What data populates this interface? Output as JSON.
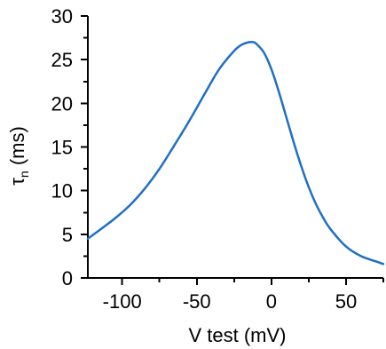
{
  "chart_data": {
    "type": "line",
    "title": "",
    "xlabel": "V test (mV)",
    "ylabel": {
      "main": "τ",
      "sub": "n",
      "suffix": " (ms)"
    },
    "xlim": [
      -123,
      75
    ],
    "ylim": [
      0,
      30
    ],
    "x_ticks": [
      {
        "value": -100,
        "label": "-100"
      },
      {
        "value": -50,
        "label": "-50"
      },
      {
        "value": 0,
        "label": "0"
      },
      {
        "value": 50,
        "label": "50"
      }
    ],
    "x_minor_ticks": [
      -125,
      -75,
      -25,
      25,
      75
    ],
    "y_ticks": [
      {
        "value": 0,
        "label": "0"
      },
      {
        "value": 5,
        "label": "5"
      },
      {
        "value": 10,
        "label": "10"
      },
      {
        "value": 15,
        "label": "15"
      },
      {
        "value": 20,
        "label": "20"
      },
      {
        "value": 25,
        "label": "25"
      },
      {
        "value": 30,
        "label": "30"
      }
    ],
    "y_minor_ticks": [
      2.5,
      7.5,
      12.5,
      17.5,
      22.5,
      27.5
    ],
    "grid": false,
    "series": [
      {
        "color": "#1f6fc5",
        "x": [
          -123,
          -115,
          -105,
          -95,
          -85,
          -75,
          -65,
          -55,
          -45,
          -35,
          -25,
          -20,
          -15,
          -12,
          -10,
          -5,
          0,
          5,
          10,
          15,
          20,
          25,
          30,
          35,
          40,
          50,
          60,
          70,
          75
        ],
        "y": [
          4.5,
          5.5,
          6.8,
          8.3,
          10.2,
          12.5,
          15.2,
          18.0,
          21.0,
          23.9,
          26.0,
          26.7,
          27.0,
          27.0,
          26.8,
          25.8,
          23.9,
          21.3,
          18.4,
          15.5,
          12.8,
          10.4,
          8.4,
          6.8,
          5.5,
          3.6,
          2.5,
          1.9,
          1.6
        ]
      }
    ]
  }
}
